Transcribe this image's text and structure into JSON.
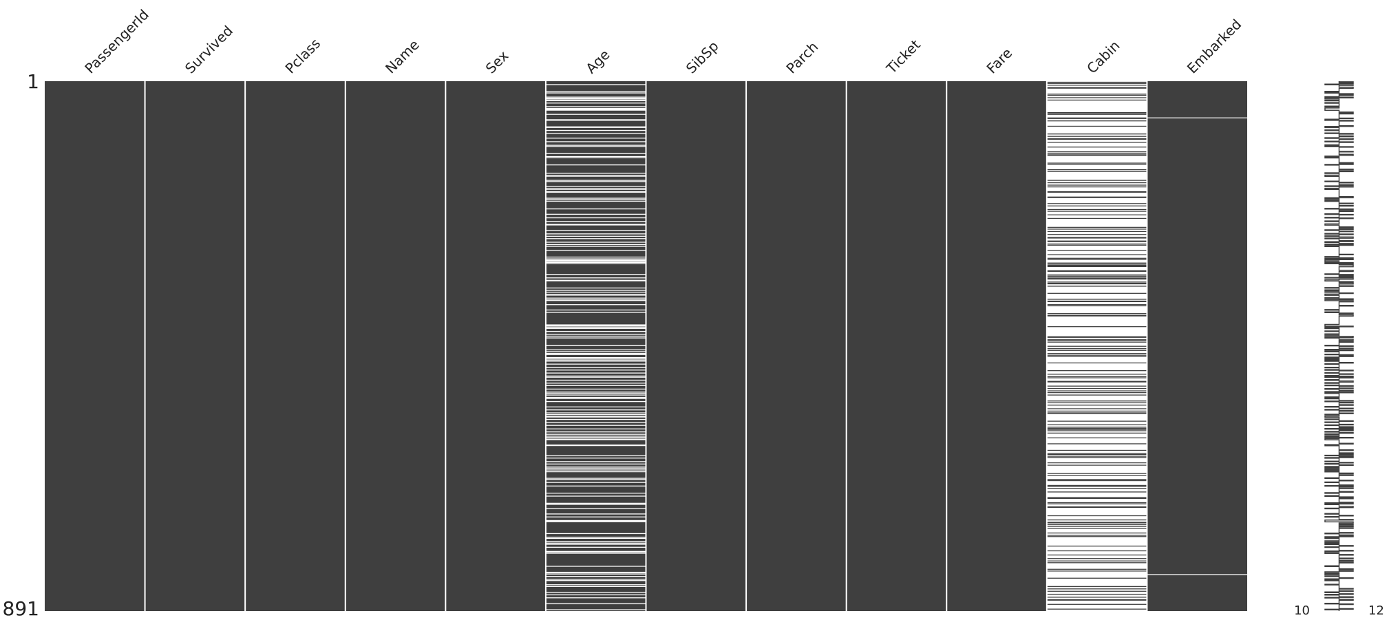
{
  "chart_data": {
    "type": "missing-matrix",
    "ylim": [
      1,
      891
    ],
    "yticks": [
      1,
      891
    ],
    "color": "#3f3f3f",
    "columns": [
      {
        "name": "PassengerId",
        "missing": []
      },
      {
        "name": "Survived",
        "missing": []
      },
      {
        "name": "Pclass",
        "missing": []
      },
      {
        "name": "Name",
        "missing": []
      },
      {
        "name": "Sex",
        "missing": []
      },
      {
        "name": "Age",
        "missing": [
          6,
          18,
          20,
          27,
          29,
          30,
          32,
          33,
          37,
          43,
          46,
          47,
          48,
          49,
          56,
          65,
          66,
          77,
          78,
          83,
          88,
          96,
          102,
          108,
          110,
          122,
          127,
          129,
          141,
          155,
          159,
          160,
          167,
          169,
          177,
          181,
          182,
          186,
          187,
          197,
          199,
          202,
          215,
          224,
          230,
          236,
          241,
          242,
          251,
          257,
          261,
          265,
          271,
          275,
          278,
          285,
          296,
          299,
          301,
          302,
          304,
          305,
          307,
          325,
          331,
          335,
          336,
          348,
          352,
          355,
          359,
          360,
          365,
          368,
          369,
          376,
          385,
          389,
          410,
          411,
          412,
          414,
          416,
          421,
          426,
          429,
          432,
          445,
          452,
          455,
          458,
          460,
          465,
          467,
          469,
          471,
          476,
          482,
          486,
          491,
          496,
          498,
          503,
          508,
          512,
          518,
          523,
          525,
          528,
          532,
          534,
          539,
          548,
          553,
          558,
          561,
          564,
          565,
          569,
          574,
          579,
          585,
          590,
          594,
          597,
          599,
          602,
          603,
          612,
          613,
          630,
          634,
          640,
          644,
          649,
          651,
          654,
          657,
          668,
          670,
          675,
          681,
          693,
          698,
          710,
          712,
          719,
          728,
          733,
          739,
          740,
          741,
          761,
          767,
          769,
          774,
          777,
          779,
          784,
          791,
          793,
          794,
          816,
          826,
          827,
          829,
          833,
          838,
          840,
          847,
          850,
          860,
          864,
          869,
          879,
          889
        ]
      },
      {
        "name": "SibSp",
        "missing": []
      },
      {
        "name": "Parch",
        "missing": []
      },
      {
        "name": "Ticket",
        "missing": []
      },
      {
        "name": "Fare",
        "missing": []
      },
      {
        "name": "Cabin",
        "present": [
          2,
          4,
          7,
          11,
          12,
          22,
          24,
          28,
          32,
          53,
          55,
          56,
          62,
          63,
          67,
          76,
          89,
          93,
          97,
          98,
          103,
          111,
          119,
          122,
          124,
          125,
          138,
          140,
          149,
          152,
          167,
          171,
          175,
          178,
          186,
          187,
          195,
          196,
          206,
          210,
          216,
          219,
          225,
          231,
          246,
          249,
          253,
          258,
          263,
          264,
          269,
          270,
          274,
          276,
          285,
          292,
          298,
          300,
          306,
          308,
          310,
          311,
          312,
          319,
          320,
          326,
          328,
          330,
          332,
          333,
          338,
          340,
          341,
          345,
          357,
          367,
          370,
          371,
          376,
          378,
          391,
          394,
          395,
          413,
          430,
          431,
          435,
          436,
          439,
          446,
          450,
          453,
          458,
          461,
          463,
          474,
          487,
          493,
          497,
          499,
          505,
          506,
          513,
          517,
          521,
          524,
          528,
          538,
          541,
          545,
          551,
          555,
          558,
          559,
          572,
          578,
          582,
          584,
          586,
          588,
          592,
          600,
          610,
          621,
          626,
          628,
          631,
          633,
          642,
          646,
          660,
          663,
          670,
          672,
          680,
          682,
          685,
          691,
          700,
          702,
          709,
          711,
          716,
          717,
          731,
          738,
          742,
          743,
          746,
          749,
          752,
          760,
          764,
          766,
          782,
          790,
          797,
          803,
          807,
          810,
          821,
          824,
          836,
          850,
          854,
          858,
          863,
          868,
          872,
          873,
          880,
          888
        ]
      },
      {
        "name": "Embarked",
        "missing": [
          62,
          830
        ]
      }
    ],
    "sparkline_lim": [
      10,
      12
    ]
  }
}
